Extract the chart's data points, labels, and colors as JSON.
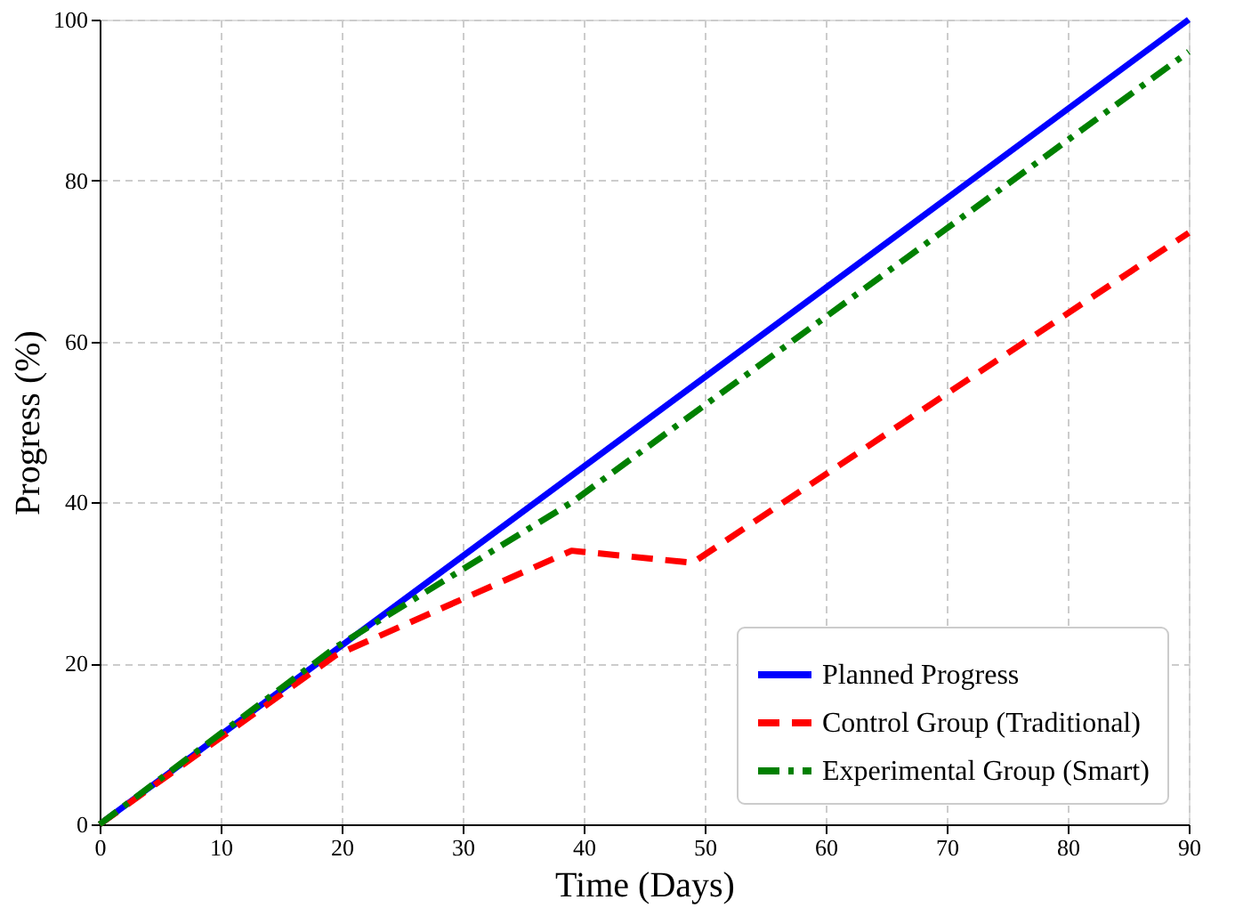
{
  "chart_data": {
    "type": "line",
    "xlabel": "Time (Days)",
    "ylabel": "Progress (%)",
    "series": [
      {
        "name": "Planned Progress",
        "color": "#0000ff",
        "line_style": "solid",
        "x": [
          0,
          90
        ],
        "values": [
          0,
          100
        ]
      },
      {
        "name": "Control Group (Traditional)",
        "color": "#ff0000",
        "line_style": "dashed",
        "x": [
          0,
          19.5,
          39,
          49,
          90
        ],
        "values": [
          0,
          21,
          34,
          32.5,
          73.5
        ]
      },
      {
        "name": "Experimental Group (Smart)",
        "color": "#008000",
        "line_style": "dashdot",
        "x": [
          0,
          19.5,
          39,
          90
        ],
        "values": [
          0,
          22,
          40,
          96
        ]
      }
    ],
    "xlim": [
      0,
      90
    ],
    "ylim": [
      0,
      100
    ],
    "xticks": [
      0,
      10,
      20,
      30,
      40,
      50,
      60,
      70,
      80,
      90
    ],
    "yticks": [
      0,
      20,
      40,
      60,
      80,
      100
    ],
    "grid": true,
    "legend": "bottom right",
    "marker": "none"
  }
}
